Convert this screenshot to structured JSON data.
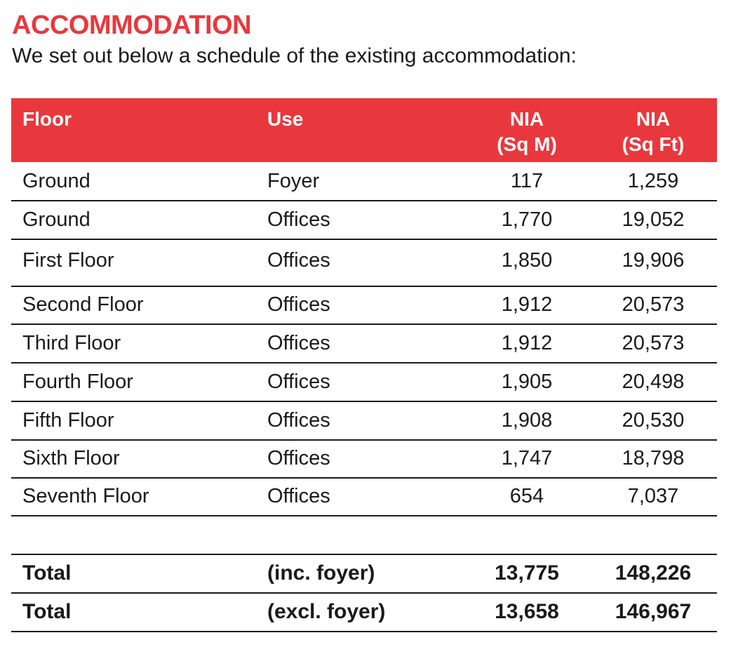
{
  "heading": "ACCOMMODATION",
  "intro": "We set out below a schedule of the existing accommodation:",
  "colors": {
    "accent": "#e8383d",
    "header_text": "#ffffff",
    "rule": "#1a1a1a"
  },
  "table": {
    "headers": {
      "floor": "Floor",
      "use": "Use",
      "sqm_line1": "NIA",
      "sqm_line2": "(Sq M)",
      "sqft_line1": "NIA",
      "sqft_line2": "(Sq Ft)"
    },
    "rows": [
      {
        "floor": "Ground",
        "use": "Foyer",
        "sqm": "117",
        "sqft": "1,259"
      },
      {
        "floor": "Ground",
        "use": "Offices",
        "sqm": "1,770",
        "sqft": "19,052"
      },
      {
        "floor": "First Floor",
        "use": "Offices",
        "sqm": "1,850",
        "sqft": "19,906"
      },
      {
        "floor": "Second Floor",
        "use": "Offices",
        "sqm": "1,912",
        "sqft": "20,573"
      },
      {
        "floor": "Third Floor",
        "use": "Offices",
        "sqm": "1,912",
        "sqft": "20,573"
      },
      {
        "floor": "Fourth Floor",
        "use": "Offices",
        "sqm": "1,905",
        "sqft": "20,498"
      },
      {
        "floor": "Fifth Floor",
        "use": "Offices",
        "sqm": "1,908",
        "sqft": "20,530"
      },
      {
        "floor": "Sixth Floor",
        "use": "Offices",
        "sqm": "1,747",
        "sqft": "18,798"
      },
      {
        "floor": "Seventh Floor",
        "use": "Offices",
        "sqm": "654",
        "sqft": "7,037"
      }
    ],
    "totals": [
      {
        "floor": "Total",
        "use": "(inc. foyer)",
        "sqm": "13,775",
        "sqft": "148,226"
      },
      {
        "floor": "Total",
        "use": "(excl. foyer)",
        "sqm": "13,658",
        "sqft": "146,967"
      }
    ]
  }
}
